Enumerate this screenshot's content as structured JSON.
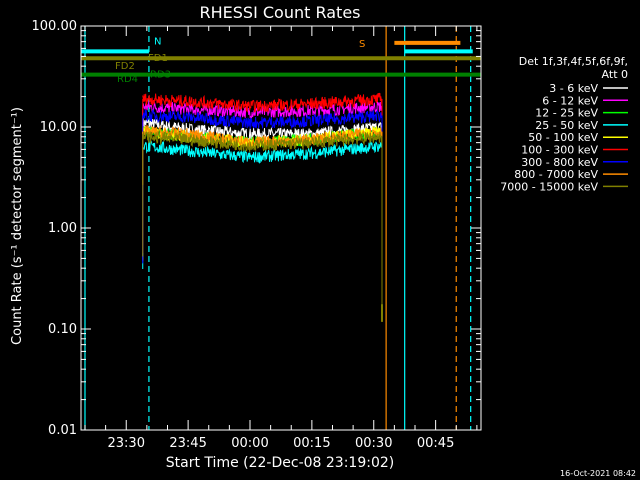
{
  "footer_timestamp": "16-Oct-2021 08:42",
  "chart_data": {
    "type": "line",
    "title": "RHESSI Count Rates",
    "xlabel": "Start Time (22-Dec-08 23:19:02)",
    "ylabel": "Count Rate (s⁻¹ detector segment⁻¹)",
    "yscale": "log",
    "ylim": [
      0.01,
      100
    ],
    "xlim": [
      "23:19:02",
      "00:56:00"
    ],
    "x_tick_labels": [
      "23:30",
      "23:45",
      "00:00",
      "00:15",
      "00:30",
      "00:45"
    ],
    "y_tick_labels": [
      "0.01",
      "0.10",
      "1.00",
      "10.00",
      "100.00"
    ],
    "grid": false,
    "legend_position": "right",
    "legend_title": [
      "Det 1f,3f,4f,5f,6f,9f,",
      "Att 0"
    ],
    "series": [
      {
        "name": "3 - 6 keV",
        "color": "#ffffff",
        "x": [
          "23:34",
          "23:45",
          "00:00",
          "00:15",
          "00:32"
        ],
        "y": [
          11,
          9.5,
          8.5,
          8.5,
          10
        ]
      },
      {
        "name": "6 - 12 keV",
        "color": "#ff00ff",
        "x": [
          "23:34",
          "23:45",
          "00:00",
          "00:15",
          "00:32"
        ],
        "y": [
          16,
          15,
          14,
          14.5,
          16
        ]
      },
      {
        "name": "12 - 25 keV",
        "color": "#00ff00",
        "x": [
          "23:34",
          "23:45",
          "00:00",
          "00:15",
          "00:32"
        ],
        "y": [
          9,
          8,
          7,
          7.5,
          9
        ]
      },
      {
        "name": "25 - 50 keV",
        "color": "#00ffff",
        "x": [
          "23:34",
          "23:45",
          "00:00",
          "00:15",
          "00:32"
        ],
        "y": [
          6.5,
          5.8,
          5,
          5.5,
          6.5
        ]
      },
      {
        "name": "50 - 100 keV",
        "color": "#ffff00",
        "x": [
          "23:34",
          "23:45",
          "00:00",
          "00:15",
          "00:32"
        ],
        "y": [
          9,
          8,
          7,
          7.5,
          9
        ]
      },
      {
        "name": "100 - 300 keV",
        "color": "#ff0000",
        "x": [
          "23:34",
          "23:45",
          "00:00",
          "00:15",
          "00:32"
        ],
        "y": [
          19,
          18,
          16,
          17,
          19
        ]
      },
      {
        "name": "300 - 800 keV",
        "color": "#0000ff",
        "x": [
          "23:34",
          "23:45",
          "00:00",
          "00:15",
          "00:32"
        ],
        "y": [
          13,
          12.5,
          11,
          11.5,
          13
        ]
      },
      {
        "name": "800 - 7000 keV",
        "color": "#ff8c00",
        "x": [
          "23:34",
          "23:45",
          "00:00",
          "00:15",
          "00:32"
        ],
        "y": [
          9,
          8.5,
          7,
          7.5,
          9
        ]
      },
      {
        "name": "7000 - 15000 keV",
        "color": "#808000",
        "x": [
          "23:34",
          "23:45",
          "00:00",
          "00:15",
          "00:32"
        ],
        "y": [
          8,
          7.5,
          6.5,
          7,
          8
        ]
      }
    ],
    "flag_bars": [
      {
        "label": "N",
        "color": "#00ffff",
        "y": 56,
        "segments": [
          [
            "23:19:02",
            "23:35:30"
          ],
          [
            "00:37:30",
            "00:54:00"
          ]
        ]
      },
      {
        "label": "S",
        "color": "#ff8c00",
        "y": 68,
        "segments": [
          [
            "00:35:00",
            "00:51:00"
          ]
        ]
      },
      {
        "label": "FD1",
        "color": "#808000",
        "y": 48,
        "segments": [
          [
            "23:19:02",
            "00:56:00"
          ]
        ]
      },
      {
        "label": "FD2",
        "color": "#808000",
        "y": 40,
        "segments": []
      },
      {
        "label": "RD4",
        "color": "#008000",
        "y": 30,
        "segments": []
      },
      {
        "label": "RD3",
        "color": "#008000",
        "y": 33,
        "segments": [
          [
            "23:19:02",
            "00:56:00"
          ]
        ]
      }
    ],
    "vertical_markers": [
      {
        "color": "#00ffff",
        "style": "solid",
        "x": "23:20"
      },
      {
        "color": "#00ffff",
        "style": "dashed",
        "x": "23:35:30"
      },
      {
        "color": "#ff8c00",
        "style": "solid",
        "x": "00:33"
      },
      {
        "color": "#00ffff",
        "style": "solid",
        "x": "00:37:30"
      },
      {
        "color": "#ff8c00",
        "style": "dashed",
        "x": "00:50:00"
      },
      {
        "color": "#00ffff",
        "style": "dashed",
        "x": "00:53:30"
      }
    ]
  }
}
